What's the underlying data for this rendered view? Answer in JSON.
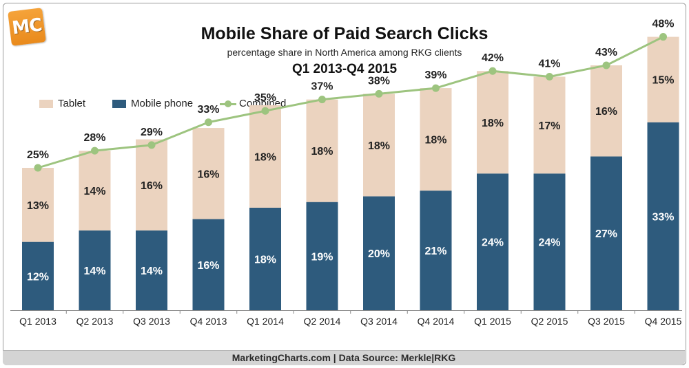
{
  "logo": {
    "text": "MC"
  },
  "colors": {
    "tablet": "#ebd3bf",
    "mobile": "#2e5b7d",
    "combined": "#9dc47f"
  },
  "footer": {
    "text": "MarketingCharts.com | Data Source: Merkle|RKG"
  },
  "chart_data": {
    "type": "bar",
    "stacked": true,
    "title": "Mobile Share of Paid Search Clicks",
    "subtitle": "percentage share in North America among RKG clients",
    "date_range": "Q1 2013-Q4 2015",
    "legend_position": "top-left",
    "grid": false,
    "ylim": [
      0,
      50
    ],
    "categories": [
      "Q1 2013",
      "Q2 2013",
      "Q3 2013",
      "Q4 2013",
      "Q1 2014",
      "Q2 2014",
      "Q3 2014",
      "Q4 2014",
      "Q1 2015",
      "Q2 2015",
      "Q3 2015",
      "Q4 2015"
    ],
    "series": [
      {
        "name": "Tablet",
        "kind": "bar",
        "values": [
          13,
          14,
          16,
          16,
          18,
          18,
          18,
          18,
          18,
          17,
          16,
          15
        ],
        "labels": [
          "13%",
          "14%",
          "16%",
          "16%",
          "18%",
          "18%",
          "18%",
          "18%",
          "18%",
          "17%",
          "16%",
          "15%"
        ]
      },
      {
        "name": "Mobile phone",
        "kind": "bar",
        "values": [
          12,
          14,
          14,
          16,
          18,
          19,
          20,
          21,
          24,
          24,
          27,
          33
        ],
        "labels": [
          "12%",
          "14%",
          "14%",
          "16%",
          "18%",
          "19%",
          "20%",
          "21%",
          "24%",
          "24%",
          "27%",
          "33%"
        ]
      },
      {
        "name": "Combined",
        "kind": "line",
        "values": [
          25,
          28,
          29,
          33,
          35,
          37,
          38,
          39,
          42,
          41,
          43,
          48
        ],
        "labels": [
          "25%",
          "28%",
          "29%",
          "33%",
          "35%",
          "37%",
          "38%",
          "39%",
          "42%",
          "41%",
          "43%",
          "48%"
        ]
      }
    ]
  }
}
